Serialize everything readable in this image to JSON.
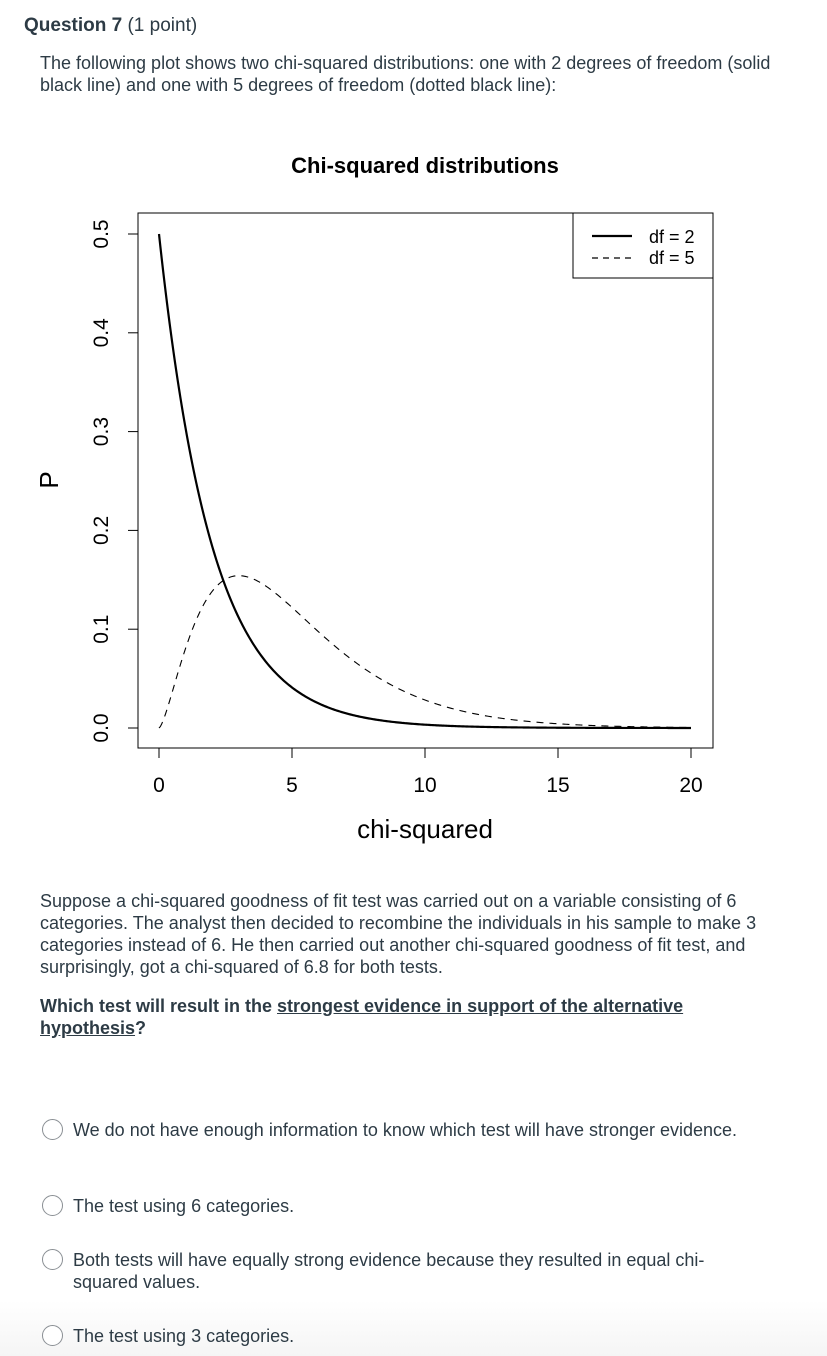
{
  "header": {
    "question_number": "Question 7",
    "points": "(1 point)"
  },
  "intro": "The following plot shows two chi-squared distributions: one with 2 degrees of freedom (solid black line) and one with 5 degrees of freedom (dotted black line):",
  "chart_data": {
    "type": "line",
    "title": "Chi-squared distributions",
    "xlabel": "chi-squared",
    "ylabel": "P",
    "xlim": [
      0,
      20
    ],
    "ylim": [
      0,
      0.5
    ],
    "xticks": [
      "0",
      "5",
      "10",
      "15",
      "20"
    ],
    "yticks": [
      "0.0",
      "0.1",
      "0.2",
      "0.3",
      "0.4",
      "0.5"
    ],
    "legend_position": "top-right",
    "series": [
      {
        "name": "df = 2",
        "style": "solid",
        "x": [
          0,
          0.5,
          1,
          1.5,
          2,
          2.5,
          3,
          3.5,
          4,
          5,
          6,
          7,
          8,
          10,
          12,
          15,
          20
        ],
        "y": [
          0.5,
          0.389,
          0.303,
          0.236,
          0.184,
          0.143,
          0.112,
          0.087,
          0.068,
          0.041,
          0.025,
          0.015,
          0.009,
          0.003,
          0.001,
          0.0003,
          0.0
        ]
      },
      {
        "name": "df = 5",
        "style": "dashed",
        "x": [
          0,
          0.5,
          1,
          1.5,
          2,
          2.5,
          3,
          3.5,
          4,
          5,
          6,
          7,
          8,
          9,
          10,
          12,
          14,
          16,
          18,
          20
        ],
        "y": [
          0.0,
          0.037,
          0.08,
          0.115,
          0.138,
          0.15,
          0.154,
          0.151,
          0.144,
          0.122,
          0.097,
          0.074,
          0.055,
          0.04,
          0.028,
          0.013,
          0.006,
          0.003,
          0.001,
          0.0005
        ]
      }
    ]
  },
  "body_text": "Suppose a chi-squared goodness of fit test was carried out on a variable consisting of 6 categories. The analyst then decided to recombine the individuals in his sample to make 3 categories instead of 6. He then carried out another chi-squared goodness of fit test, and surprisingly, got a chi-squared of 6.8 for both tests.",
  "question": {
    "prefix": "Which test will result in the ",
    "emphasis": "strongest evidence in support of the alternative hypothesis",
    "suffix": "?"
  },
  "options": [
    {
      "label": "We do not have enough information to know which test will have stronger evidence."
    },
    {
      "label": "The test using 6 categories."
    },
    {
      "label": "Both tests will have equally strong evidence because they resulted in equal chi-squared values."
    },
    {
      "label": "The test using 3 categories."
    }
  ]
}
